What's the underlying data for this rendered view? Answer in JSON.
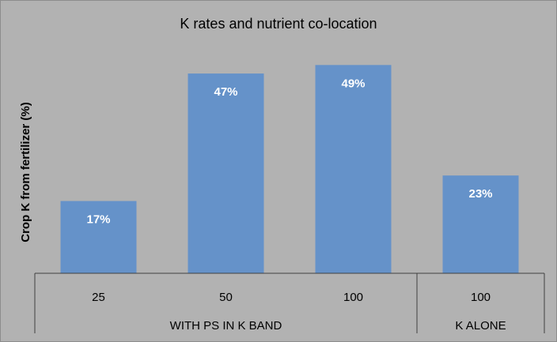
{
  "chart_data": {
    "type": "bar",
    "title": "K rates and nutrient co-location",
    "ylabel": "Crop K from fertilizer (%)",
    "xlabel": "",
    "ylim": [
      0,
      55
    ],
    "grid": false,
    "legend": "none",
    "categories": [
      "25",
      "50",
      "100",
      "100"
    ],
    "groups": [
      {
        "label": "WITH PS IN K BAND",
        "categories": [
          "25",
          "50",
          "100"
        ]
      },
      {
        "label": "K ALONE",
        "categories": [
          "100"
        ]
      }
    ],
    "values": [
      17,
      47,
      49,
      23
    ],
    "data_labels": [
      "17%",
      "47%",
      "49%",
      "23%"
    ],
    "colors": {
      "bar": "#6592c9",
      "background": "#b2b2b2",
      "text": "#000000",
      "label": "#ffffff"
    }
  }
}
